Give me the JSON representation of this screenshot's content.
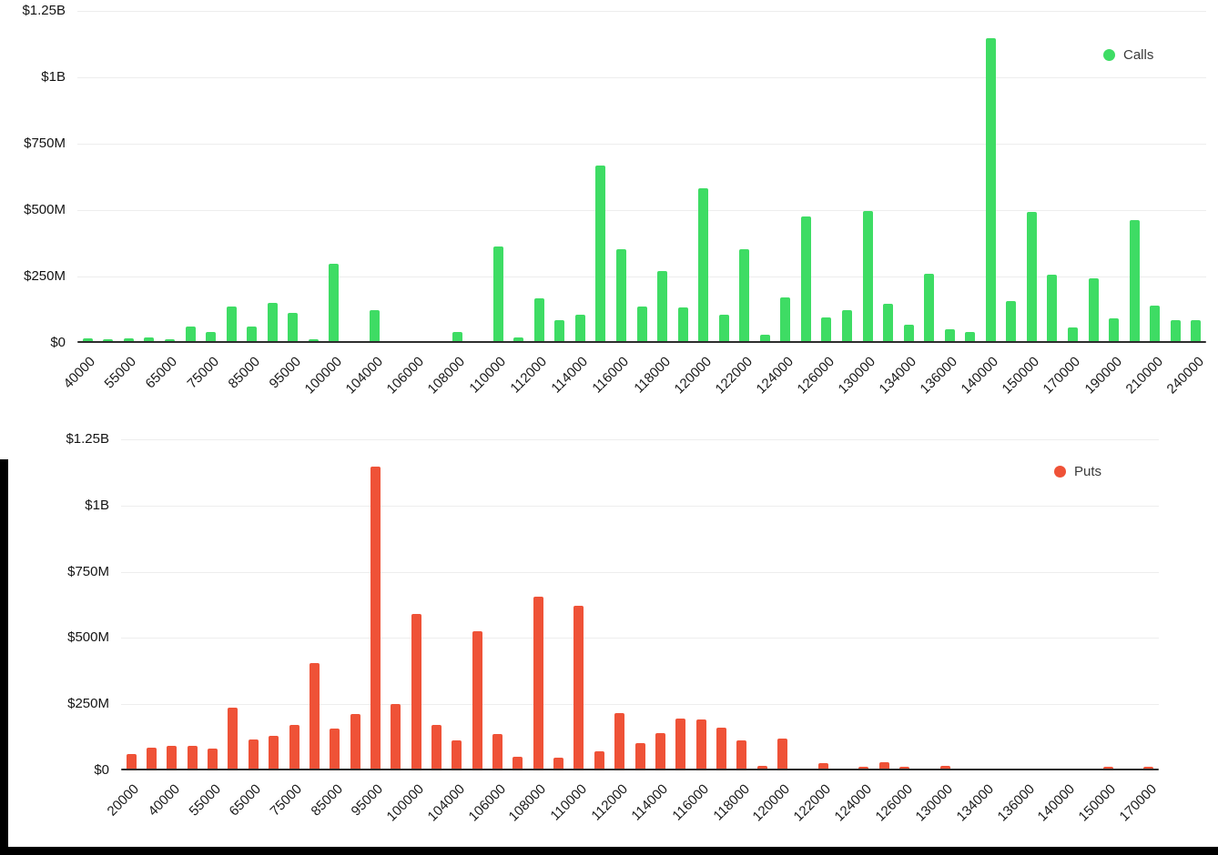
{
  "page": {
    "background": "#ffffff"
  },
  "chart_data": [
    {
      "type": "bar",
      "id": "calls",
      "title": "",
      "xlabel": "",
      "ylabel": "",
      "legend_label": "Calls",
      "legend_position": "top-right",
      "bar_color": "#3EDC64",
      "grid": true,
      "value_unit": "USD millions",
      "ylim_millions": [
        0,
        1250
      ],
      "yticks": [
        [
          0,
          "$0"
        ],
        [
          250,
          "$250M"
        ],
        [
          500,
          "$500M"
        ],
        [
          750,
          "$750M"
        ],
        [
          1000,
          "$1B"
        ],
        [
          1250,
          "$1.25B"
        ]
      ],
      "x_tick_labels": [
        "40000",
        "55000",
        "65000",
        "75000",
        "85000",
        "95000",
        "100000",
        "104000",
        "106000",
        "108000",
        "110000",
        "112000",
        "114000",
        "116000",
        "118000",
        "120000",
        "122000",
        "124000",
        "126000",
        "130000",
        "134000",
        "136000",
        "140000",
        "150000",
        "170000",
        "190000",
        "210000",
        "240000"
      ],
      "label_every_n_bars": 2,
      "values_millions": [
        10,
        8,
        10,
        12,
        8,
        55,
        35,
        130,
        55,
        145,
        105,
        8,
        290,
        0,
        115,
        0,
        0,
        0,
        35,
        0,
        355,
        15,
        160,
        80,
        100,
        660,
        345,
        130,
        265,
        125,
        575,
        100,
        345,
        25,
        165,
        470,
        90,
        115,
        490,
        140,
        60,
        255,
        45,
        35,
        1140,
        150,
        485,
        250,
        50,
        235,
        85,
        455,
        135,
        80,
        80
      ]
    },
    {
      "type": "bar",
      "id": "puts",
      "title": "",
      "xlabel": "",
      "ylabel": "",
      "legend_label": "Puts",
      "legend_position": "top-right",
      "bar_color": "#EF5237",
      "grid": true,
      "value_unit": "USD millions",
      "ylim_millions": [
        0,
        1250
      ],
      "yticks": [
        [
          0,
          "$0"
        ],
        [
          250,
          "$250M"
        ],
        [
          500,
          "$500M"
        ],
        [
          750,
          "$750M"
        ],
        [
          1000,
          "$1B"
        ],
        [
          1250,
          "$1.25B"
        ]
      ],
      "x_tick_labels": [
        "20000",
        "40000",
        "55000",
        "65000",
        "75000",
        "85000",
        "95000",
        "100000",
        "104000",
        "106000",
        "108000",
        "110000",
        "112000",
        "114000",
        "116000",
        "118000",
        "120000",
        "122000",
        "124000",
        "126000",
        "130000",
        "134000",
        "136000",
        "140000",
        "150000",
        "170000"
      ],
      "label_every_n_bars": 2,
      "values_millions": [
        55,
        80,
        85,
        85,
        75,
        230,
        110,
        125,
        165,
        400,
        150,
        205,
        1140,
        245,
        585,
        165,
        105,
        520,
        130,
        45,
        650,
        40,
        615,
        65,
        210,
        95,
        135,
        190,
        185,
        155,
        105,
        10,
        115,
        0,
        20,
        0,
        5,
        25,
        5,
        0,
        10,
        0,
        0,
        0,
        0,
        0,
        0,
        0,
        5,
        0,
        8
      ]
    }
  ]
}
